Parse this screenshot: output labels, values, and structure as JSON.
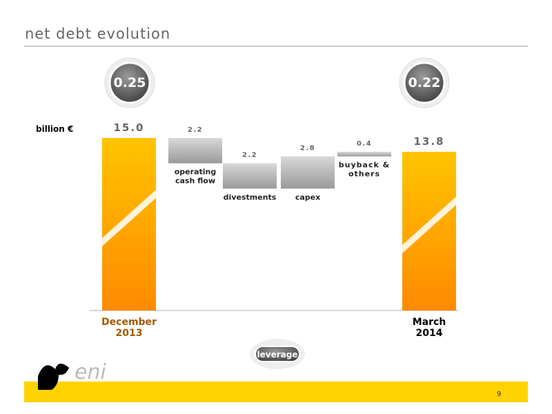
{
  "chart_data": {
    "type": "waterfall",
    "title": "net debt evolution",
    "unit_label": "billion €",
    "categories": [
      "December\n2013",
      "operating\ncash flow",
      "divestments",
      "capex",
      "buyback &\nothers",
      "March\n2014"
    ],
    "values": [
      15.0,
      -2.2,
      -2.2,
      2.8,
      0.4,
      13.8
    ],
    "value_labels": [
      "15.0",
      "2.2",
      "2.2",
      "2.8",
      "0.4",
      "13.8"
    ],
    "totals": [
      true,
      false,
      false,
      false,
      false,
      true
    ],
    "leverage": {
      "label": "leverage",
      "values": [
        0.25,
        0.22
      ]
    },
    "color": "#ffb000"
  },
  "footer": {
    "logo": "eni",
    "page": "9"
  }
}
